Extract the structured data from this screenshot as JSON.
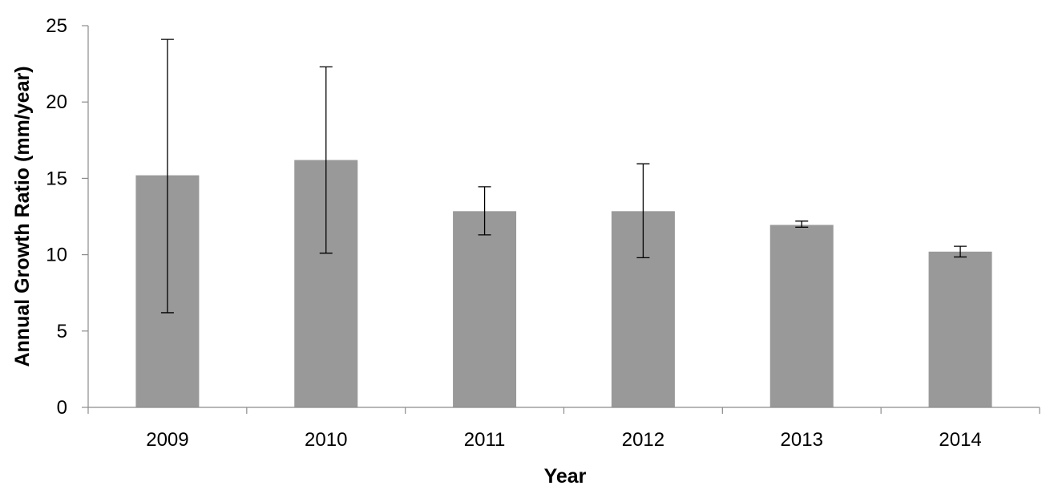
{
  "chart_data": {
    "type": "bar",
    "title": "",
    "xlabel": "Year",
    "ylabel": "Annual Growth Ratio (mm/year)",
    "categories": [
      "2009",
      "2010",
      "2011",
      "2012",
      "2013",
      "2014"
    ],
    "values": [
      15.2,
      16.2,
      12.85,
      12.85,
      11.95,
      10.2
    ],
    "error_upper": [
      24.1,
      22.3,
      14.45,
      15.95,
      12.2,
      10.55
    ],
    "error_lower": [
      6.2,
      10.1,
      11.3,
      9.8,
      11.8,
      9.85
    ],
    "ylim": [
      0,
      25
    ],
    "yticks": [
      0,
      5,
      10,
      15,
      20,
      25
    ],
    "grid": false,
    "legend": false,
    "colors": {
      "bar": "#999999",
      "axis": "#8c8c8c",
      "error_bar": "#000000"
    }
  }
}
